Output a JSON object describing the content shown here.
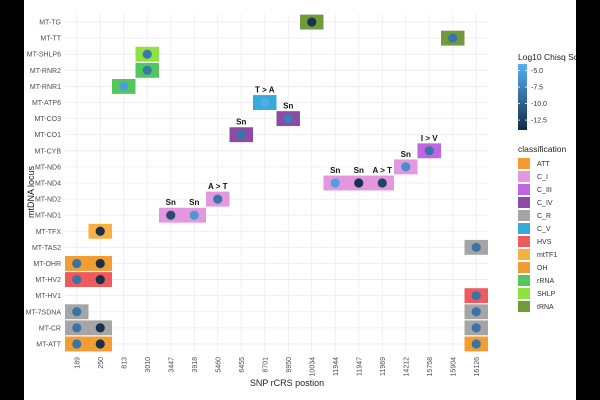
{
  "chart_data": {
    "type": "heatmap",
    "xlabel": "SNP rCRS postion",
    "ylabel": "mtDNA locus",
    "x_categories": [
      "189",
      "250",
      "813",
      "3010",
      "3447",
      "3918",
      "5460",
      "6455",
      "8701",
      "9950",
      "10034",
      "11944",
      "11947",
      "11969",
      "14212",
      "15758",
      "15904",
      "16126"
    ],
    "y_categories": [
      "MT-TG",
      "MT-TT",
      "MT-SHLP6",
      "MT-RNR2",
      "MT-RNR1",
      "MT-ATP6",
      "MT-CO3",
      "MT-CO1",
      "MT-CYB",
      "MT-ND6",
      "MT-ND4",
      "MT-ND2",
      "MT-ND1",
      "MT-TFX",
      "MT-TAS2",
      "MT-OHR",
      "MT-HV2",
      "MT-HV1",
      "MT-7SDNA",
      "MT-CR",
      "MT-ATT"
    ],
    "color_legend": {
      "title": "Log10 Chisq Score",
      "ticks": [
        -5.0,
        -7.5,
        -10.0,
        -12.5
      ],
      "tick_labels": [
        "-5.0",
        "-7.5",
        "-10.0",
        "-12.5"
      ],
      "range": [
        -14,
        -4
      ],
      "low_color": "#132B43",
      "high_color": "#56B1F7"
    },
    "classification_legend": {
      "title": "classification",
      "items": [
        {
          "name": "ATT",
          "color": "#F39C33"
        },
        {
          "name": "C_I",
          "color": "#E397DF"
        },
        {
          "name": "C_III",
          "color": "#C066E3"
        },
        {
          "name": "C_IV",
          "color": "#8B4BA6"
        },
        {
          "name": "C_R",
          "color": "#A5A5A5"
        },
        {
          "name": "C_V",
          "color": "#34ABD8"
        },
        {
          "name": "HVS",
          "color": "#EE5B5F"
        },
        {
          "name": "mtTF1",
          "color": "#F6B142"
        },
        {
          "name": "OH",
          "color": "#F39C33"
        },
        {
          "name": "rRNA",
          "color": "#53C75E"
        },
        {
          "name": "SHLP",
          "color": "#8FE23F"
        },
        {
          "name": "tRNA",
          "color": "#6F9B3A"
        }
      ]
    },
    "cells": [
      {
        "x": "10034",
        "y": "MT-TG",
        "class": "tRNA",
        "score": -13.5
      },
      {
        "x": "15904",
        "y": "MT-TT",
        "class": "tRNA",
        "score": -8.5
      },
      {
        "x": "3010",
        "y": "MT-SHLP6",
        "class": "SHLP",
        "score": -8.2
      },
      {
        "x": "3010",
        "y": "MT-RNR2",
        "class": "rRNA",
        "score": -8.2
      },
      {
        "x": "813",
        "y": "MT-RNR1",
        "class": "rRNA",
        "score": -5.5
      },
      {
        "x": "8701",
        "y": "MT-ATP6",
        "class": "C_V",
        "score": -4.5,
        "label": "T > A"
      },
      {
        "x": "9950",
        "y": "MT-CO3",
        "class": "C_IV",
        "score": -7.8,
        "label": "Sn"
      },
      {
        "x": "6455",
        "y": "MT-CO1",
        "class": "C_IV",
        "score": -8.5,
        "label": "Sn"
      },
      {
        "x": "15758",
        "y": "MT-CYB",
        "class": "C_III",
        "score": -8.5,
        "label": "I > V"
      },
      {
        "x": "14212",
        "y": "MT-ND6",
        "class": "C_I",
        "score": -6.5,
        "label": "Sn"
      },
      {
        "x": "11944",
        "y": "MT-ND4",
        "class": "C_I",
        "score": -5.3,
        "label": "Sn"
      },
      {
        "x": "11947",
        "y": "MT-ND4",
        "class": "C_I",
        "score": -13.5,
        "label": "Sn"
      },
      {
        "x": "11969",
        "y": "MT-ND4",
        "class": "C_I",
        "score": -12.0,
        "label": "A > T"
      },
      {
        "x": "5460",
        "y": "MT-ND2",
        "class": "C_I",
        "score": -8.5,
        "label": "A > T"
      },
      {
        "x": "3447",
        "y": "MT-ND1",
        "class": "C_I",
        "score": -11.5,
        "label": "Sn"
      },
      {
        "x": "3918",
        "y": "MT-ND1",
        "class": "C_I",
        "score": -5.8,
        "label": "Sn"
      },
      {
        "x": "250",
        "y": "MT-TFX",
        "class": "mtTF1",
        "score": -13.5
      },
      {
        "x": "16126",
        "y": "MT-TAS2",
        "class": "C_R",
        "score": -8.5
      },
      {
        "x": "189",
        "y": "MT-OHR",
        "class": "OH",
        "score": -8.5
      },
      {
        "x": "250",
        "y": "MT-OHR",
        "class": "OH",
        "score": -13.5
      },
      {
        "x": "189",
        "y": "MT-HV2",
        "class": "HVS",
        "score": -8.5
      },
      {
        "x": "250",
        "y": "MT-HV2",
        "class": "HVS",
        "score": -13.5
      },
      {
        "x": "16126",
        "y": "MT-HV1",
        "class": "HVS",
        "score": -8.5
      },
      {
        "x": "189",
        "y": "MT-7SDNA",
        "class": "C_R",
        "score": -8.5
      },
      {
        "x": "16126",
        "y": "MT-7SDNA",
        "class": "C_R",
        "score": -8.5
      },
      {
        "x": "189",
        "y": "MT-CR",
        "class": "C_R",
        "score": -8.5
      },
      {
        "x": "250",
        "y": "MT-CR",
        "class": "C_R",
        "score": -13.5
      },
      {
        "x": "16126",
        "y": "MT-CR",
        "class": "C_R",
        "score": -8.5
      },
      {
        "x": "189",
        "y": "MT-ATT",
        "class": "ATT",
        "score": -8.5
      },
      {
        "x": "250",
        "y": "MT-ATT",
        "class": "ATT",
        "score": -13.5
      },
      {
        "x": "16126",
        "y": "MT-ATT",
        "class": "ATT",
        "score": -8.5
      }
    ]
  }
}
